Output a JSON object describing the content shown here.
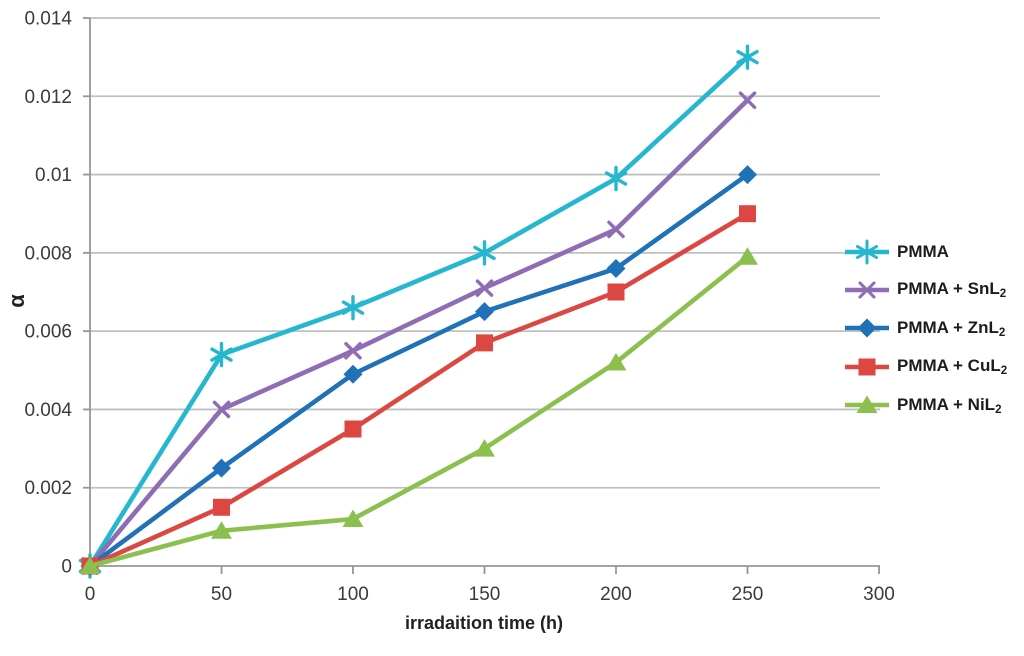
{
  "figure": {
    "background": "#FFFFFF",
    "axis_color": "#969696",
    "gridline_color": "#C0C0C0",
    "tick_label_color": "#3B3B3B",
    "title_text_color": "#212121"
  },
  "chart_data": {
    "type": "line",
    "title": "",
    "xlabel": "irradaition time (h)",
    "ylabel": "α",
    "x": [
      0,
      50,
      100,
      150,
      200,
      250
    ],
    "xlim": [
      0,
      300
    ],
    "ylim": [
      0,
      0.014
    ],
    "x_ticks": [
      0,
      50,
      100,
      150,
      200,
      250,
      300
    ],
    "x_tick_labels": [
      "0",
      "50",
      "100",
      "150",
      "200",
      "250",
      "300"
    ],
    "y_ticks": [
      0,
      0.002,
      0.004,
      0.006,
      0.008,
      0.01,
      0.012,
      0.014
    ],
    "y_tick_labels": [
      "0",
      "0.002",
      "0.004",
      "0.006",
      "0.008",
      "0.01",
      "0.012",
      "0.014"
    ],
    "grid": true,
    "legend_position": "right",
    "series": [
      {
        "id": "pmma",
        "label": "PMMA",
        "label_sub": "",
        "marker": "asterisk",
        "color": "#25B7CE",
        "values": [
          0,
          0.0054,
          0.0066,
          0.008,
          0.0099,
          0.013
        ]
      },
      {
        "id": "pmma-snl2",
        "label": "PMMA + SnL",
        "label_sub": "2",
        "marker": "x",
        "color": "#8F6DB5",
        "values": [
          0,
          0.004,
          0.0055,
          0.0071,
          0.0086,
          0.0119
        ]
      },
      {
        "id": "pmma-znl2",
        "label": "PMMA + ZnL",
        "label_sub": "2",
        "marker": "diamond",
        "color": "#1F72B8",
        "values": [
          0,
          0.0025,
          0.0049,
          0.0065,
          0.0076,
          0.01
        ]
      },
      {
        "id": "pmma-cul2",
        "label": "PMMA + CuL",
        "label_sub": "2",
        "marker": "square",
        "color": "#DC4742",
        "values": [
          0,
          0.0015,
          0.0035,
          0.0057,
          0.007,
          0.009
        ]
      },
      {
        "id": "pmma-nil2",
        "label": "PMMA + NiL",
        "label_sub": "2",
        "marker": "triangle",
        "color": "#8CC04E",
        "values": [
          0,
          0.0009,
          0.0012,
          0.003,
          0.0052,
          0.0079
        ]
      }
    ]
  }
}
